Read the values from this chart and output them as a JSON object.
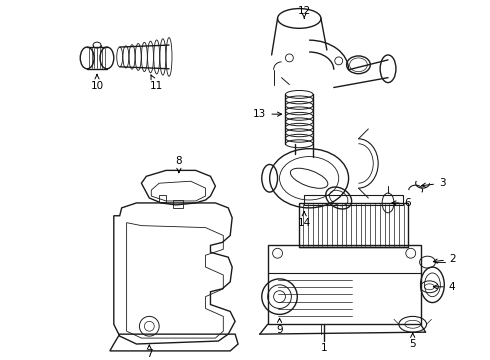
{
  "background_color": "#ffffff",
  "line_color": "#1a1a1a",
  "figure_width": 4.9,
  "figure_height": 3.6,
  "dpi": 100
}
